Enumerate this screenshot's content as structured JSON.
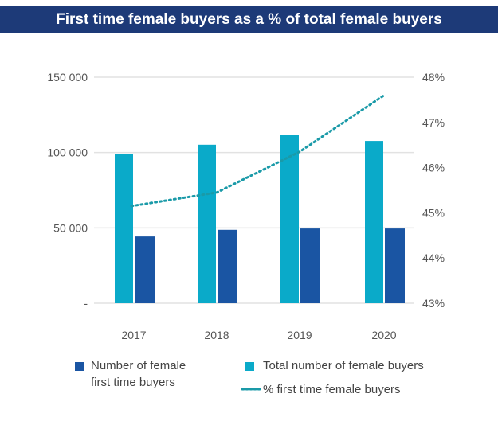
{
  "chart_data": {
    "type": "bar",
    "title": "First time female buyers as a % of total female buyers",
    "categories": [
      "2017",
      "2018",
      "2019",
      "2020"
    ],
    "series": [
      {
        "name": "Total number of female buyers",
        "type": "bar",
        "axis": "left",
        "color": "#0aaac9",
        "values": [
          99000,
          105200,
          111500,
          107700
        ]
      },
      {
        "name": "Number of female first time buyers",
        "type": "bar",
        "axis": "left",
        "color": "#1a55a3",
        "values": [
          44300,
          48700,
          49600,
          49600
        ]
      },
      {
        "name": "% first time female buyers",
        "type": "line",
        "style": "dotted",
        "axis": "right",
        "color": "#1a9aa8",
        "values": [
          45.15,
          45.45,
          46.35,
          47.6
        ]
      }
    ],
    "left_axis": {
      "ylim": [
        0,
        150000
      ],
      "ticks": [
        0,
        50000,
        100000,
        150000
      ],
      "tick_labels": [
        "-",
        "50 000",
        "100 000",
        "150 000"
      ]
    },
    "right_axis": {
      "ylim": [
        43,
        48
      ],
      "tick_labels": [
        "43%",
        "44%",
        "45%",
        "46%",
        "47%",
        "48%"
      ]
    },
    "grid": true,
    "legend_placement": "bottom",
    "legend": {
      "first": "Number of female first time buyers",
      "first_line1": "Number of female",
      "first_line2": "first time buyers",
      "total": "Total number of female buyers",
      "pct": "% first time female buyers"
    }
  }
}
